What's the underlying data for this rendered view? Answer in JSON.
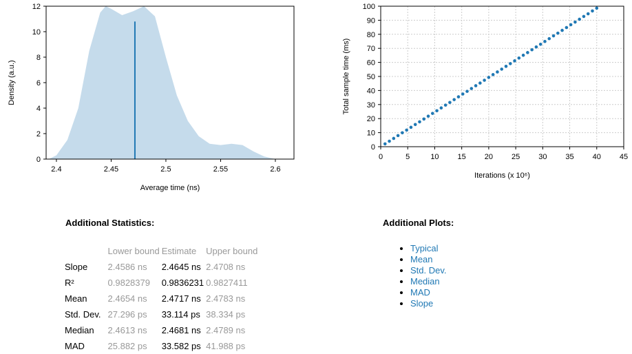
{
  "chart_data": [
    {
      "type": "area",
      "x_label": "Average time (ns)",
      "y_label": "Density (a.u.)",
      "x": [
        2.393,
        2.4,
        2.41,
        2.42,
        2.43,
        2.44,
        2.445,
        2.45,
        2.46,
        2.47,
        2.48,
        2.49,
        2.5,
        2.51,
        2.52,
        2.53,
        2.54,
        2.55,
        2.56,
        2.57,
        2.58,
        2.59,
        2.6
      ],
      "values": [
        0,
        0.3,
        1.5,
        4,
        8.5,
        11.5,
        12,
        11.8,
        11.3,
        11.6,
        12,
        11.2,
        8,
        5,
        3,
        1.8,
        1.2,
        1.1,
        1.2,
        1.1,
        0.6,
        0.2,
        0
      ],
      "color": "#c5dbeb",
      "mean_line": {
        "x": 2.4717,
        "y": 10.8,
        "color": "#1f78b4"
      },
      "xlim": [
        2.3906,
        2.617
      ],
      "xticks": [
        2.4,
        2.45,
        2.5,
        2.55,
        2.6
      ],
      "ylim": [
        0,
        12
      ],
      "yticks": [
        0,
        2,
        4,
        6,
        8,
        10,
        12
      ],
      "grid": false
    },
    {
      "type": "scatter",
      "x_label": "Iterations (x 10⁶)",
      "y_label": "Total sample time (ms)",
      "x": [
        0.8,
        1.6,
        2.4,
        3.2,
        4,
        4.8,
        5.6,
        6.4,
        7.2,
        8,
        8.8,
        9.6,
        10.4,
        11.2,
        12,
        12.8,
        13.6,
        14.4,
        15.2,
        16,
        16.8,
        17.6,
        18.4,
        19.2,
        20,
        20.8,
        21.6,
        22.4,
        23.2,
        24,
        24.8,
        25.6,
        26.4,
        27.2,
        28,
        28.8,
        29.6,
        30.4,
        31.2,
        32,
        32.8,
        33.6,
        34.4,
        35.2,
        36,
        36.8,
        37.6,
        38.4,
        39.2,
        40
      ],
      "values": [
        2.0,
        3.9,
        5.9,
        7.9,
        9.9,
        11.8,
        13.8,
        15.8,
        17.7,
        19.7,
        21.7,
        23.7,
        25.6,
        27.6,
        29.6,
        31.5,
        33.5,
        35.5,
        37.5,
        39.4,
        41.4,
        43.4,
        45.3,
        47.3,
        49.3,
        51.3,
        53.2,
        55.2,
        57.2,
        59.1,
        61.1,
        63.1,
        65.1,
        67.0,
        69.0,
        71.0,
        72.9,
        74.9,
        76.9,
        78.9,
        80.8,
        82.8,
        84.8,
        86.8,
        88.7,
        90.7,
        92.7,
        94.6,
        96.6,
        98.6
      ],
      "color": "#1f78b4",
      "xlim": [
        0,
        45
      ],
      "xticks": [
        0,
        5,
        10,
        15,
        20,
        25,
        30,
        35,
        40,
        45
      ],
      "ylim": [
        0,
        100
      ],
      "yticks": [
        0,
        10,
        20,
        30,
        40,
        50,
        60,
        70,
        80,
        90,
        100
      ],
      "grid": true
    }
  ],
  "statistics": {
    "title": "Additional Statistics:",
    "header": [
      "Lower bound",
      "Estimate",
      "Upper bound"
    ],
    "rows": [
      [
        "Slope",
        "2.4586 ns",
        "2.4645 ns",
        "2.4708 ns"
      ],
      [
        "R²",
        "0.9828379",
        "0.9836231",
        "0.9827411"
      ],
      [
        "Mean",
        "2.4654 ns",
        "2.4717 ns",
        "2.4783 ns"
      ],
      [
        "Std. Dev.",
        "27.296 ps",
        "33.114 ps",
        "38.334 ps"
      ],
      [
        "Median",
        "2.4613 ns",
        "2.4681 ns",
        "2.4789 ns"
      ],
      [
        "MAD",
        "25.882 ps",
        "33.582 ps",
        "41.988 ps"
      ]
    ]
  },
  "plots": {
    "title": "Additional Plots:",
    "links": [
      "Typical",
      "Mean",
      "Std. Dev.",
      "Median",
      "MAD",
      "Slope"
    ]
  }
}
